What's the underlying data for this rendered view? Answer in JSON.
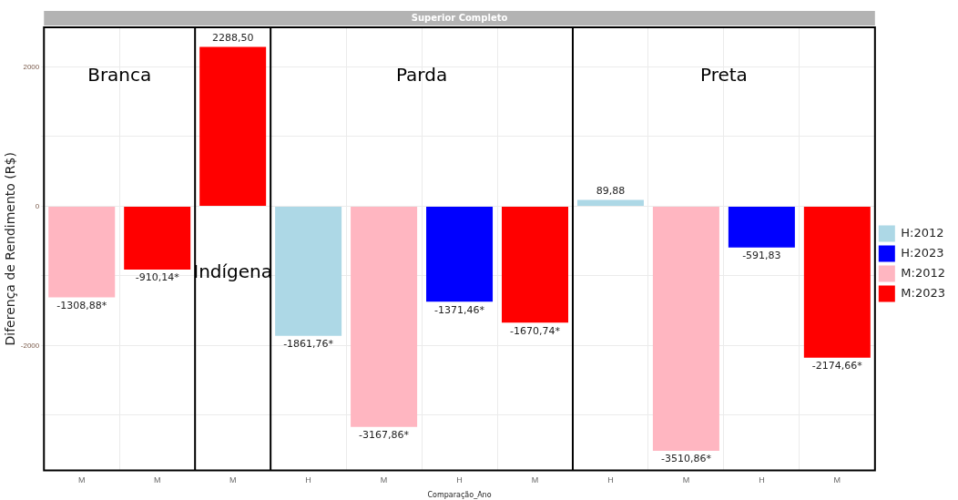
{
  "chart_data": {
    "type": "bar",
    "title": "Superior Completo",
    "xlabel": "Comparação_Ano",
    "ylabel": "Diferença de Rendimento (R$)",
    "annotations": [
      "Branca",
      "Indígena",
      "Parda",
      "Preta"
    ],
    "categories": [
      "M",
      "M",
      "M",
      "H",
      "M",
      "H",
      "M",
      "H",
      "M",
      "H",
      "M"
    ],
    "series": [
      {
        "name": "H:2012",
        "color": "#add8e6",
        "values": [
          null,
          null,
          null,
          -1861.76,
          null,
          null,
          null,
          89.88,
          null,
          null,
          null
        ],
        "value_labels": [
          null,
          null,
          null,
          "-1861,76*",
          null,
          null,
          null,
          "89,88",
          null,
          null,
          null
        ]
      },
      {
        "name": "H:2023",
        "color": "#0000ff",
        "values": [
          null,
          null,
          null,
          null,
          null,
          -1371.46,
          null,
          null,
          null,
          -591.83,
          null
        ],
        "value_labels": [
          null,
          null,
          null,
          null,
          null,
          "-1371,46*",
          null,
          null,
          null,
          "-591,83",
          null
        ]
      },
      {
        "name": "M:2012",
        "color": "#ffb6c1",
        "values": [
          -1308.88,
          null,
          null,
          null,
          -3167.86,
          null,
          null,
          null,
          -3510.86,
          null,
          null
        ],
        "value_labels": [
          "-1308,88*",
          null,
          null,
          null,
          "-3167,86*",
          null,
          null,
          null,
          "-3510,86*",
          null,
          null
        ]
      },
      {
        "name": "M:2023",
        "color": "#ff0000",
        "values": [
          null,
          -910.14,
          2288.5,
          null,
          null,
          null,
          -1670.74,
          null,
          null,
          null,
          -2174.66
        ],
        "value_labels": [
          null,
          "-910,14*",
          "2288,50",
          null,
          null,
          null,
          "-1670,74*",
          null,
          null,
          null,
          "-2174,66*"
        ]
      }
    ],
    "ylim": [
      -3794,
      2568
    ],
    "yticks": [
      {
        "value": -3000,
        "label": null
      },
      -2000,
      {
        "value": -1000,
        "label": null
      },
      0,
      {
        "value": 1000,
        "label": null
      },
      2000
    ],
    "grid": true,
    "legend": "right"
  }
}
